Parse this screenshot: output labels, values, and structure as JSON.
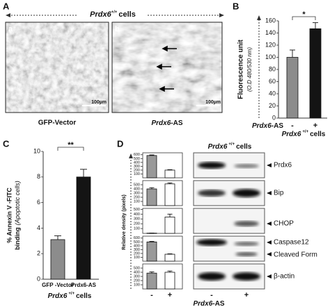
{
  "panel_a": {
    "label": "A",
    "header": {
      "gene": "Prdx6",
      "genotype": "+/+",
      "suffix": "cells"
    },
    "images": [
      {
        "label": "a",
        "scale": "100µm",
        "caption": "GFP-Vector"
      },
      {
        "label": "b",
        "scale": "100µm",
        "caption_gene": "Prdx6",
        "caption_suffix": "-AS"
      }
    ]
  },
  "chart_data": [
    {
      "type": "bar",
      "panel": "B",
      "ylabel": "Fluorescence unit",
      "ylabel_note": "(O.D 480/530 nm)",
      "categories": [
        "-",
        "+"
      ],
      "values": [
        100,
        147
      ],
      "errors": [
        12,
        10
      ],
      "colors": [
        "#8c8c8c",
        "#141414"
      ],
      "ylim": [
        0,
        160
      ],
      "yticks": [
        0,
        20,
        40,
        60,
        80,
        100,
        120,
        140,
        160
      ],
      "significance": "*",
      "xlabel_gene": "Prdx6",
      "xlabel_suffix": "-AS",
      "footer": {
        "gene": "Prdx6",
        "genotype": "+/+",
        "suffix": "cells"
      }
    },
    {
      "type": "bar",
      "panel": "C",
      "ylabel": "% Annexin V -FITC",
      "ylabel_line2": "binding",
      "ylabel_note": "(Apoptotic cells)",
      "categories": [
        "GFP -Vector",
        "Prdx6-AS"
      ],
      "values": [
        3.1,
        8.0
      ],
      "errors": [
        0.3,
        0.6
      ],
      "colors": [
        "#8c8c8c",
        "#141414"
      ],
      "ylim": [
        0,
        10
      ],
      "yticks": [
        0,
        2,
        4,
        6,
        8,
        10
      ],
      "significance": "**",
      "footer": {
        "gene": "Prdx6",
        "genotype": "+/+",
        "suffix": "cells"
      }
    },
    {
      "type": "bar",
      "values": [
        580,
        200
      ],
      "errors": [
        15,
        12
      ],
      "colors": [
        "#999999",
        "#ffffff"
      ],
      "ylim": [
        0,
        650
      ],
      "yticks": [
        100,
        200,
        300,
        400,
        500,
        600
      ]
    },
    {
      "type": "bar",
      "values": [
        400,
        520
      ],
      "errors": [
        30,
        25
      ],
      "colors": [
        "#999999",
        "#ffffff"
      ],
      "ylim": [
        0,
        600
      ],
      "yticks": [
        100,
        200,
        300,
        400,
        500
      ]
    },
    {
      "type": "bar",
      "values": [
        5,
        340
      ],
      "errors": [
        2,
        60
      ],
      "colors": [
        "#999999",
        "#ffffff"
      ],
      "ylim": [
        0,
        520
      ],
      "yticks": [
        100,
        200,
        300,
        400,
        500
      ]
    },
    {
      "type": "bar",
      "values": [
        500,
        180
      ],
      "errors": [
        15,
        12
      ],
      "colors": [
        "#999999",
        "#ffffff"
      ],
      "ylim": [
        0,
        650
      ],
      "yticks": [
        100,
        200,
        300,
        400,
        500,
        600
      ]
    },
    {
      "type": "bar",
      "values": [
        380,
        400
      ],
      "errors": [
        30,
        30
      ],
      "colors": [
        "#999999",
        "#ffffff"
      ],
      "ylim": [
        0,
        600
      ],
      "yticks": [
        100,
        200,
        300,
        400,
        500
      ]
    }
  ],
  "panel_d": {
    "label": "D",
    "ylabel": "Relative density (pixels)",
    "blot_title": {
      "gene": "Prdx6",
      "genotype": "+/+",
      "suffix": "cells"
    },
    "blot_labels": [
      "Prdx6",
      "Bip",
      "CHOP",
      "Caspase12",
      "Cleaved Form",
      "β-actin"
    ],
    "conditions": [
      "-",
      "+"
    ],
    "xlabel_gene": "Prdx6",
    "xlabel_suffix": "-AS"
  }
}
